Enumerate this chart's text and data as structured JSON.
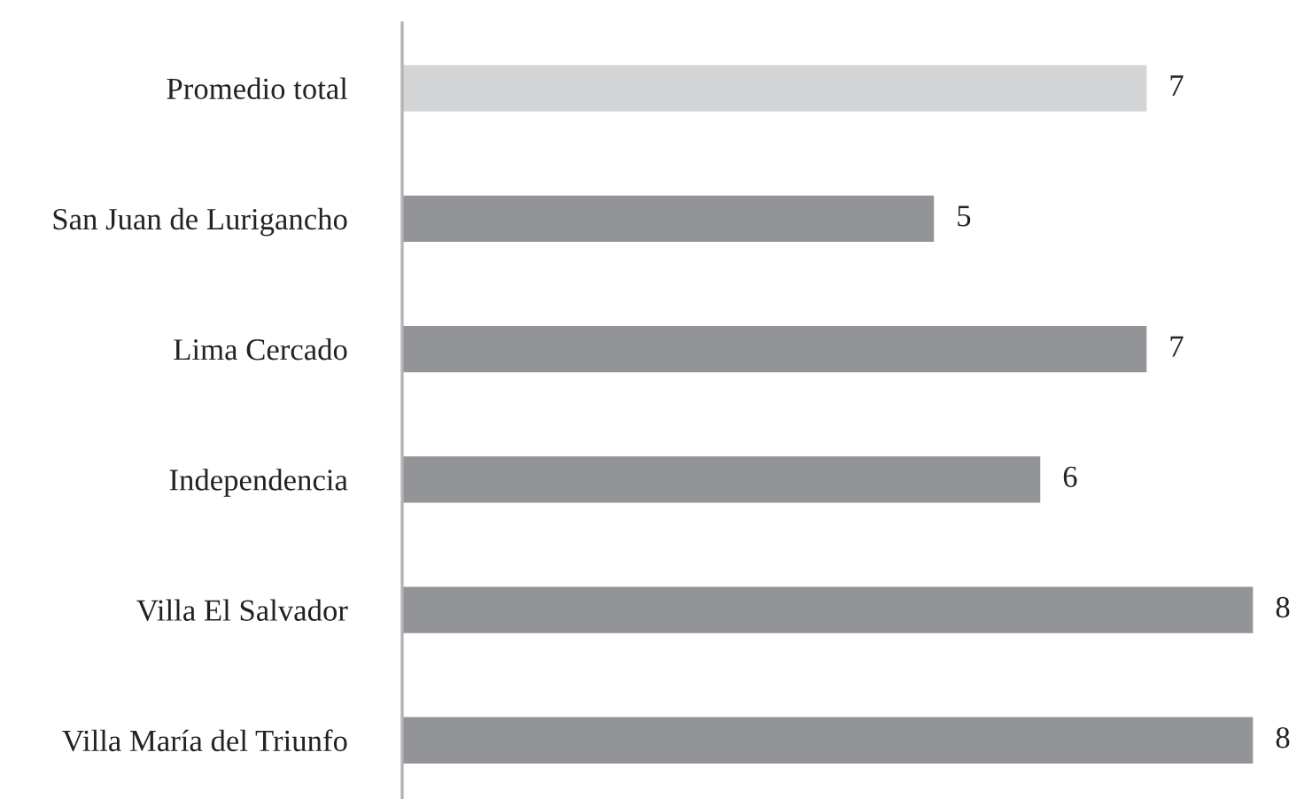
{
  "chart_data": {
    "type": "bar",
    "orientation": "horizontal",
    "categories": [
      "Promedio total",
      "San Juan de Lurigancho",
      "Lima Cercado",
      "Independencia",
      "Villa El Salvador",
      "Villa María del Triunfo"
    ],
    "values": [
      7,
      5,
      7,
      6,
      8,
      8
    ],
    "colors": [
      "#d3d4d6",
      "#939498",
      "#939498",
      "#939498",
      "#939498",
      "#939498"
    ],
    "data_labels": true
  }
}
